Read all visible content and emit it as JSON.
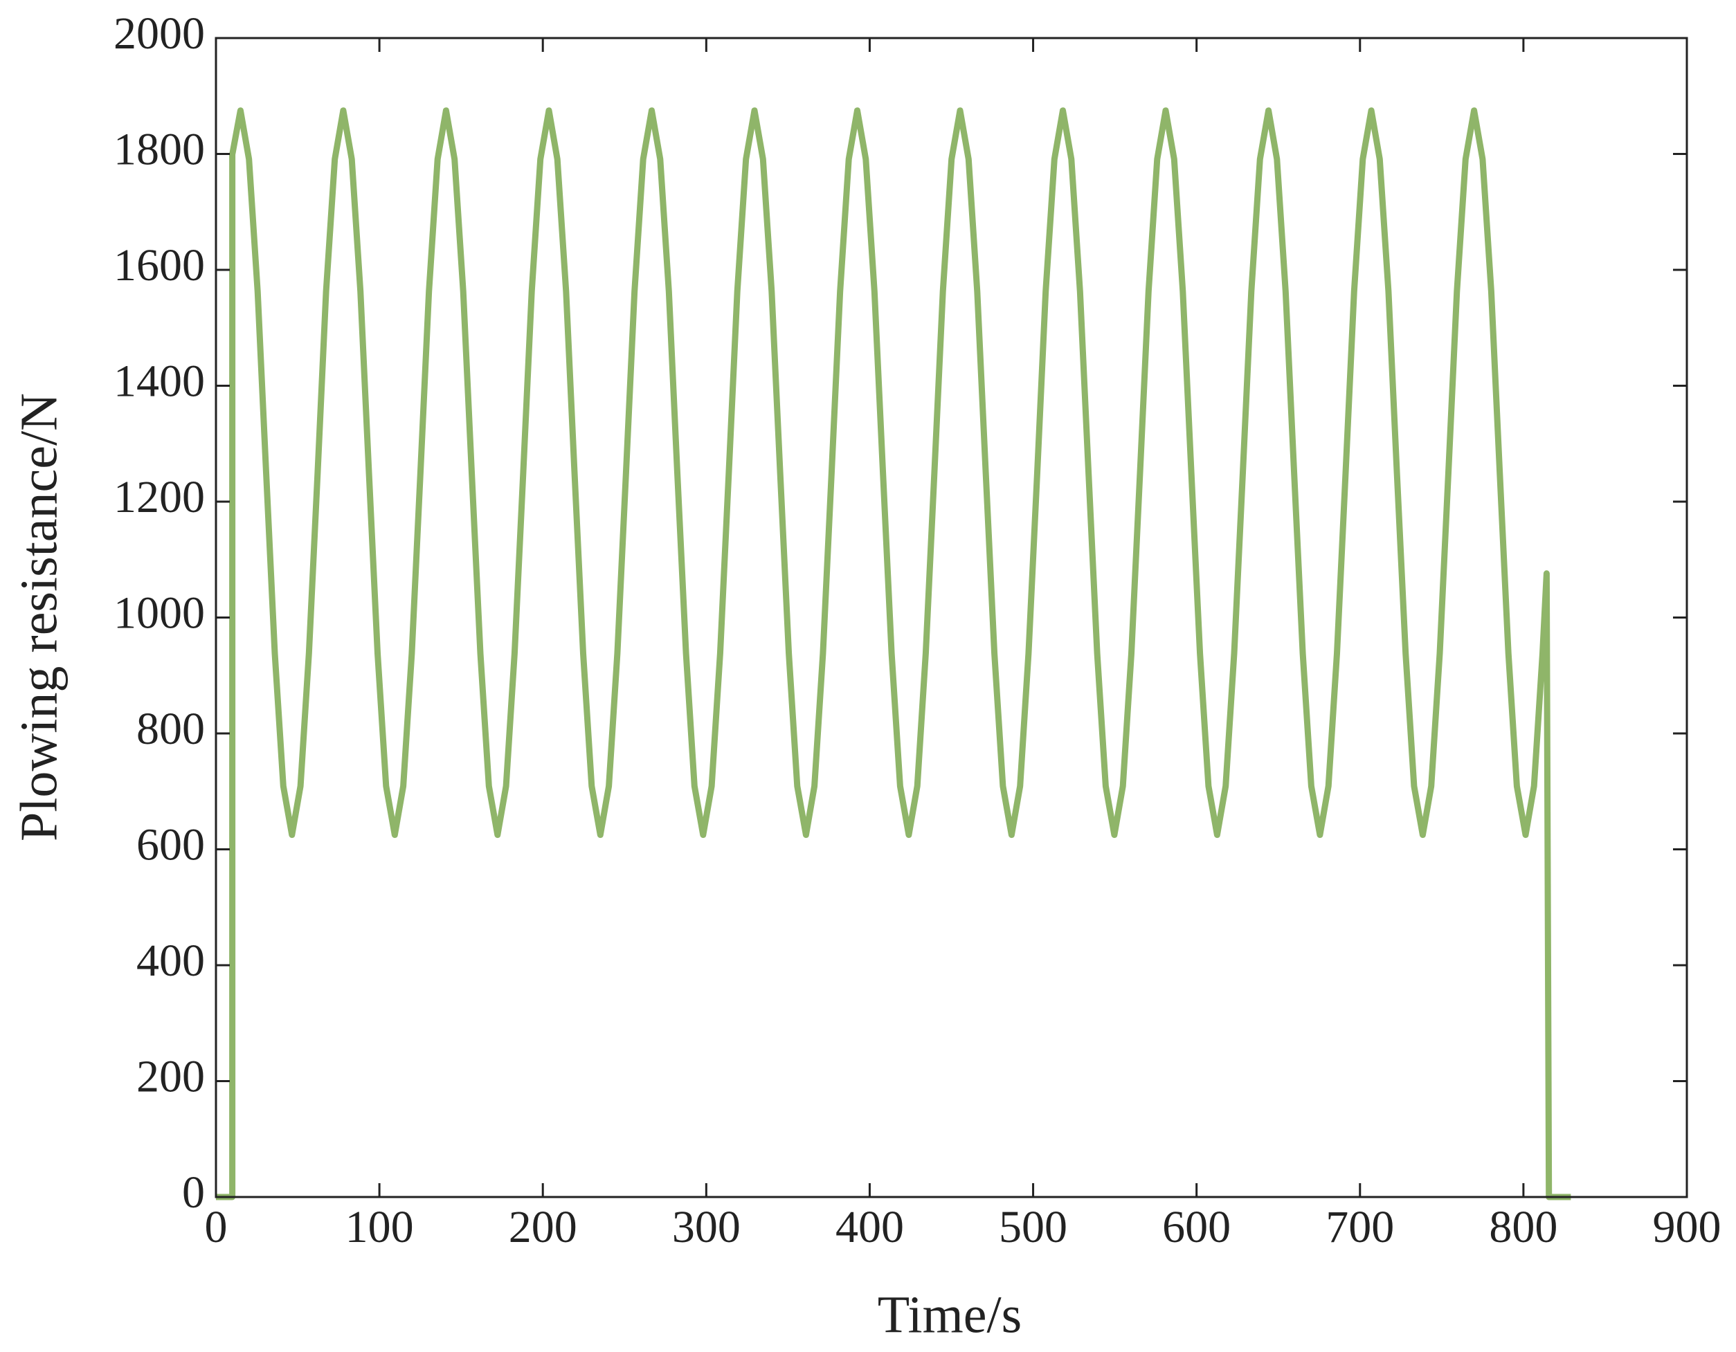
{
  "chart_data": {
    "type": "line",
    "xlabel": "Time/s",
    "ylabel": "Plowing resistance/N",
    "color": "#8fb569",
    "xlim": [
      0,
      900
    ],
    "ylim": [
      0,
      2000
    ],
    "xticks": [
      0,
      100,
      200,
      300,
      400,
      500,
      600,
      700,
      800,
      900
    ],
    "yticks": [
      0,
      200,
      400,
      600,
      800,
      1000,
      1200,
      1400,
      1600,
      1800,
      2000
    ],
    "box": true,
    "x": [
      0,
      10,
      10,
      15.0,
      20.2,
      25.5,
      30.7,
      36.0,
      41.2,
      46.5,
      51.7,
      56.9,
      62.2,
      67.4,
      72.7,
      77.9,
      83.1,
      88.4,
      93.6,
      98.9,
      104.1,
      109.4,
      114.6,
      119.8,
      125.1,
      130.3,
      135.6,
      140.8,
      146.0,
      151.3,
      156.5,
      161.8,
      167.0,
      172.3,
      177.5,
      182.7,
      188.0,
      193.2,
      198.5,
      203.7,
      208.9,
      214.2,
      219.4,
      224.7,
      229.9,
      235.2,
      240.4,
      245.6,
      250.9,
      256.1,
      261.4,
      266.6,
      271.8,
      277.1,
      282.3,
      287.6,
      292.8,
      298.1,
      303.3,
      308.5,
      313.8,
      319.0,
      324.3,
      329.5,
      334.7,
      340.0,
      345.2,
      350.5,
      355.7,
      361.0,
      366.2,
      371.4,
      376.7,
      381.9,
      387.2,
      392.4,
      397.6,
      402.9,
      408.1,
      413.4,
      418.6,
      423.9,
      429.1,
      434.3,
      439.6,
      444.8,
      450.1,
      455.3,
      460.5,
      465.8,
      471.0,
      476.3,
      481.5,
      486.8,
      492.0,
      497.2,
      502.5,
      507.7,
      513.0,
      518.2,
      523.4,
      528.7,
      533.9,
      539.2,
      544.4,
      549.7,
      554.9,
      560.1,
      565.4,
      570.6,
      575.9,
      581.1,
      586.3,
      591.6,
      596.8,
      602.1,
      607.3,
      612.6,
      617.8,
      623.0,
      628.3,
      633.5,
      638.8,
      644.0,
      649.2,
      654.5,
      659.7,
      665.0,
      670.2,
      675.5,
      680.7,
      685.9,
      691.2,
      696.4,
      701.7,
      706.9,
      712.1,
      717.4,
      722.6,
      727.9,
      733.1,
      738.4,
      743.6,
      748.8,
      754.1,
      759.3,
      764.6,
      769.8,
      775.0,
      780.3,
      785.5,
      790.8,
      796.0,
      801.3,
      806.5,
      811.7,
      814.2,
      815.6,
      829
    ],
    "values": [
      0,
      0,
      1799,
      1875,
      1791,
      1563,
      1250,
      938,
      709,
      625,
      709,
      938,
      1250,
      1563,
      1791,
      1875,
      1791,
      1563,
      1250,
      938,
      709,
      625,
      709,
      938,
      1250,
      1563,
      1791,
      1875,
      1791,
      1563,
      1250,
      938,
      709,
      625,
      709,
      938,
      1250,
      1563,
      1791,
      1875,
      1791,
      1563,
      1250,
      938,
      709,
      625,
      709,
      938,
      1250,
      1563,
      1791,
      1875,
      1791,
      1563,
      1250,
      938,
      709,
      625,
      709,
      938,
      1250,
      1563,
      1791,
      1875,
      1791,
      1563,
      1250,
      938,
      709,
      625,
      709,
      938,
      1250,
      1563,
      1791,
      1875,
      1791,
      1563,
      1250,
      938,
      709,
      625,
      709,
      938,
      1250,
      1563,
      1791,
      1875,
      1791,
      1563,
      1250,
      938,
      709,
      625,
      709,
      938,
      1250,
      1563,
      1791,
      1875,
      1791,
      1563,
      1250,
      938,
      709,
      625,
      709,
      938,
      1250,
      1563,
      1791,
      1875,
      1791,
      1563,
      1250,
      938,
      709,
      625,
      709,
      938,
      1250,
      1563,
      1791,
      1875,
      1791,
      1563,
      1250,
      938,
      709,
      625,
      709,
      938,
      1250,
      1563,
      1791,
      1875,
      1791,
      1563,
      1250,
      938,
      709,
      625,
      709,
      938,
      1250,
      1563,
      1791,
      1875,
      1791,
      1563,
      1250,
      938,
      709,
      625,
      709,
      938,
      1076,
      0,
      0
    ]
  }
}
